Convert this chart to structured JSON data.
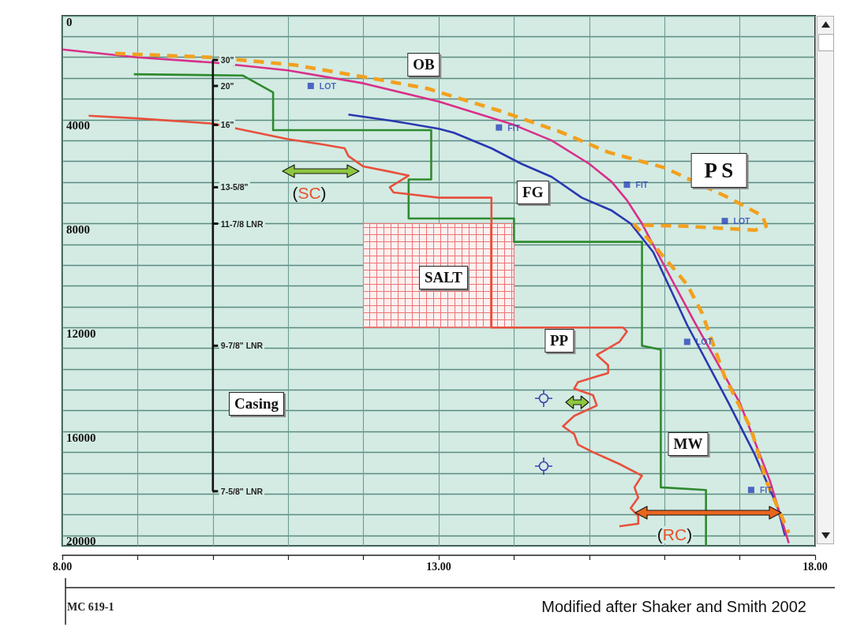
{
  "chart_data": {
    "type": "line",
    "xlim": [
      8,
      18
    ],
    "xticks": [
      {
        "value": 8,
        "label": "8.00"
      },
      {
        "value": 9,
        "label": null
      },
      {
        "value": 10,
        "label": null
      },
      {
        "value": 11,
        "label": null
      },
      {
        "value": 12,
        "label": null
      },
      {
        "value": 13,
        "label": "13.00"
      },
      {
        "value": 14,
        "label": null
      },
      {
        "value": 15,
        "label": null
      },
      {
        "value": 16,
        "label": null
      },
      {
        "value": 17,
        "label": null
      },
      {
        "value": 18,
        "label": "18.00"
      }
    ],
    "ylim": [
      20400,
      0
    ],
    "yticks": [
      0,
      {
        "value": 800,
        "label": null
      },
      {
        "value": 1600,
        "label": null
      },
      {
        "value": 2400,
        "label": null
      },
      {
        "value": 3200,
        "label": null
      },
      4000,
      {
        "value": 4800,
        "label": null
      },
      {
        "value": 5600,
        "label": null
      },
      {
        "value": 6400,
        "label": null
      },
      {
        "value": 7200,
        "label": null
      },
      8000,
      {
        "value": 8800,
        "label": null
      },
      {
        "value": 9600,
        "label": null
      },
      {
        "value": 10400,
        "label": null
      },
      {
        "value": 11200,
        "label": null
      },
      12000,
      {
        "value": 12800,
        "label": null
      },
      {
        "value": 13600,
        "label": null
      },
      {
        "value": 14400,
        "label": null
      },
      {
        "value": 15200,
        "label": null
      },
      16000,
      {
        "value": 16800,
        "label": null
      },
      {
        "value": 17600,
        "label": null
      },
      {
        "value": 18400,
        "label": null
      },
      {
        "value": 19200,
        "label": null
      },
      20000
    ],
    "grid": true,
    "series": [
      {
        "type": "area",
        "x": [
          12,
          14
        ],
        "values": [
          null,
          null
        ],
        "lower": [
          8000,
          8000
        ],
        "upper": [
          12000,
          12000
        ],
        "color": "#ee7373"
      },
      {
        "x": [
          8.95,
          10.4,
          10.8,
          10.8,
          12.9,
          12.9,
          12.6,
          12.6,
          14.0,
          14.0,
          15.7,
          15.7,
          15.95,
          15.95,
          16.55,
          16.55
        ],
        "values": [
          2250,
          2300,
          2950,
          4400,
          4400,
          6300,
          6300,
          7800,
          7800,
          8700,
          8700,
          12700,
          12850,
          18150,
          18250,
          20400
        ],
        "color": "#2f8a2f"
      },
      {
        "x": [
          8.35,
          9.0,
          10.0,
          11.0,
          11.45,
          11.75,
          11.8,
          12.0,
          12.35,
          12.6,
          12.35,
          12.4,
          13.0,
          13.7,
          13.7,
          15.45,
          15.5,
          15.4,
          15.1,
          15.25,
          15.25,
          14.85,
          14.8,
          15.05,
          15.1,
          14.8,
          14.65,
          14.8,
          14.85,
          15.05,
          15.4,
          15.7,
          15.6,
          15.65,
          15.55,
          15.65,
          15.65,
          15.4
        ],
        "values": [
          3850,
          3950,
          4150,
          4750,
          4950,
          5100,
          5400,
          5800,
          6000,
          6150,
          6600,
          6800,
          7000,
          7000,
          12000,
          12000,
          12150,
          12550,
          13050,
          13450,
          13750,
          14100,
          14350,
          14600,
          15000,
          15400,
          15800,
          16100,
          16500,
          16800,
          17250,
          17700,
          18150,
          18550,
          18950,
          19250,
          19550,
          19650
        ],
        "color": "#e8503c"
      },
      {
        "x": [
          11.8,
          12.4,
          13.0,
          13.2,
          13.7,
          14.1,
          14.5,
          14.9,
          15.3,
          15.55,
          15.85,
          16.3,
          16.85,
          17.2,
          17.5,
          17.6
        ],
        "values": [
          3800,
          4050,
          4350,
          4500,
          5100,
          5700,
          6200,
          7000,
          7500,
          8000,
          9100,
          11900,
          14900,
          16900,
          18900,
          20000
        ],
        "color": "#2a38b0"
      },
      {
        "x": [
          8.0,
          9.0,
          10.0,
          11.0,
          12.0,
          13.0,
          14.0,
          14.5,
          15.0,
          15.3,
          15.5,
          15.7,
          15.9,
          16.4,
          17.0,
          17.4,
          17.65
        ],
        "values": [
          1300,
          1600,
          1800,
          2100,
          2600,
          3300,
          4200,
          4800,
          5700,
          6400,
          7100,
          8000,
          9100,
          11800,
          14900,
          17900,
          20300
        ],
        "color": "#d8308a"
      },
      {
        "x": [
          8.7,
          10.0,
          11.1,
          12.0,
          12.85,
          13.8,
          14.6,
          15.25,
          16.0,
          16.85,
          17.3,
          17.35,
          17.2,
          16.3,
          15.6,
          15.85,
          16.3,
          16.5,
          16.8,
          17.15,
          17.35,
          17.65
        ],
        "values": [
          1450,
          1600,
          1900,
          2350,
          2800,
          3650,
          4450,
          5250,
          5850,
          7000,
          7700,
          8100,
          8250,
          8100,
          8050,
          8800,
          10350,
          11450,
          13900,
          15900,
          17900,
          19900
        ],
        "color": "#f2a01e",
        "line_style": "dashed"
      },
      {
        "x": [
          10,
          10,
          10,
          10,
          10,
          10,
          10
        ],
        "values": [
          1700,
          2700,
          4200,
          6600,
          8000,
          12700,
          18300
        ],
        "color": "#111111",
        "marker": "square"
      },
      {
        "type": "scatter",
        "x": [
          11.3,
          13.8,
          15.5,
          16.8,
          16.3,
          17.15
        ],
        "values": [
          2700,
          4300,
          6500,
          7900,
          12550,
          18250
        ],
        "color": "#2b44b8",
        "marker": "square",
        "value_labels": [
          "LOT",
          "FIT",
          "FIT",
          "LOT",
          "LOT",
          "FIT"
        ]
      }
    ],
    "annotations": [
      {
        "text": "30\"",
        "x": 10,
        "y": 1700
      },
      {
        "text": "20\"",
        "x": 10,
        "y": 2700
      },
      {
        "text": "16\"",
        "x": 10,
        "y": 4200
      },
      {
        "text": "13-5/8\"",
        "x": 10,
        "y": 6600
      },
      {
        "text": "11-7/8 LNR",
        "x": 10,
        "y": 8000
      },
      {
        "text": "9-7/8\" LNR",
        "x": 10,
        "y": 12700
      },
      {
        "text": "7-5/8\" LNR",
        "x": 10,
        "y": 18300
      },
      "OB",
      {
        "text": "FG",
        "x": 14.25,
        "y": 6800
      },
      "P S",
      "SALT",
      {
        "text": "PP",
        "x": 14.6,
        "y": 12500
      },
      "MW",
      "Casing",
      "(SC)",
      "(RC)",
      "MC 619-1",
      "Modified after Shaker and Smith 2002"
    ]
  }
}
